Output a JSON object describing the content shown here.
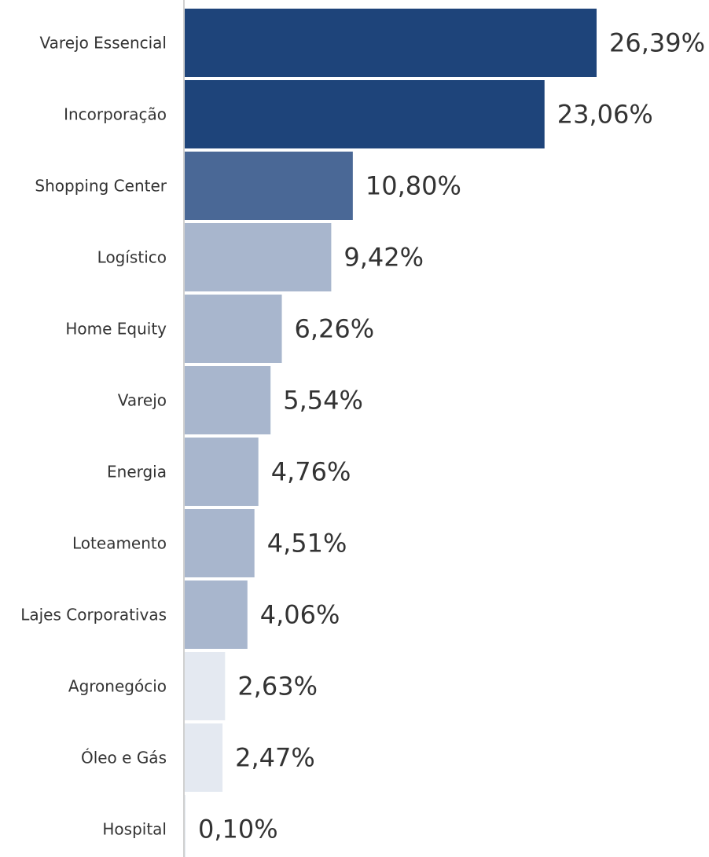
{
  "chart_data": {
    "type": "bar",
    "orientation": "horizontal",
    "title": "",
    "xlabel": "",
    "ylabel": "",
    "categories": [
      "Varejo Essencial",
      "Incorporação",
      "Shopping Center",
      "Logístico",
      "Home Equity",
      "Varejo",
      "Energia",
      "Loteamento",
      "Lajes Corporativas",
      "Agronegócio",
      "Óleo e Gás",
      "Hospital"
    ],
    "values": [
      26.39,
      23.06,
      10.8,
      9.42,
      6.26,
      5.54,
      4.76,
      4.51,
      4.06,
      2.63,
      2.47,
      0.1
    ],
    "value_labels": [
      "26,39%",
      "23,06%",
      "10,80%",
      "9,42%",
      "6,26%",
      "5,54%",
      "4,76%",
      "4,51%",
      "4,06%",
      "2,63%",
      "2,47%",
      "0,10%"
    ],
    "unit": "%",
    "xlim": [
      0,
      26.39
    ],
    "grid": false,
    "legend": "none",
    "colors": {
      "dark": "#1e447a",
      "medium": "#4a6896",
      "light": "#a8b6cd",
      "pale": "#e4e9f1",
      "axis": "#d0d0d0",
      "text": "#333333"
    },
    "bar_color_keys": [
      "dark",
      "dark",
      "medium",
      "light",
      "light",
      "light",
      "light",
      "light",
      "light",
      "pale",
      "pale",
      "pale"
    ]
  }
}
